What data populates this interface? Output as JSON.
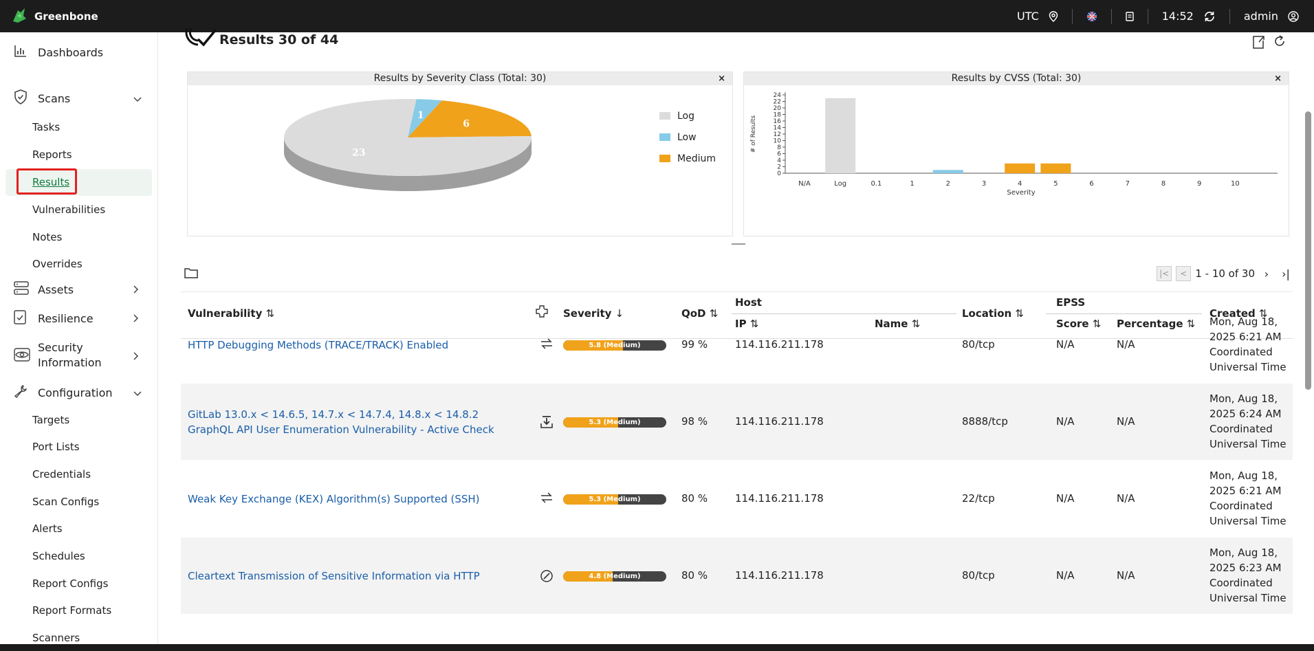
{
  "topbar": {
    "brand": "Greenbone",
    "timezone": "UTC",
    "time": "14:52",
    "user": "admin"
  },
  "sidebar": {
    "dashboards": "Dashboards",
    "scans": "Scans",
    "scan_items": [
      "Tasks",
      "Reports",
      "Results",
      "Vulnerabilities",
      "Notes",
      "Overrides"
    ],
    "assets": "Assets",
    "resilience": "Resilience",
    "security_information_1": "Security",
    "security_information_2": "Information",
    "configuration": "Configuration",
    "config_items": [
      "Targets",
      "Port Lists",
      "Credentials",
      "Scan Configs",
      "Alerts",
      "Schedules",
      "Report Configs",
      "Report Formats",
      "Scanners"
    ]
  },
  "page": {
    "title": "Results 30 of 44"
  },
  "panels": {
    "severity_class_title": "Results by Severity Class (Total: 30)",
    "cvss_title": "Results by CVSS (Total: 30)",
    "close": "×"
  },
  "chart_data": [
    {
      "type": "pie",
      "title": "Results by Severity Class (Total: 30)",
      "labels": [
        "Log",
        "Low",
        "Medium"
      ],
      "values": [
        23,
        1,
        6
      ],
      "colors": [
        "#dcdcdc",
        "#87cbe8",
        "#f0a21b"
      ],
      "legend": "right"
    },
    {
      "type": "bar",
      "title": "Results by CVSS (Total: 30)",
      "categories": [
        "N/A",
        "Log",
        "0.1",
        "1",
        "2",
        "3",
        "4",
        "5",
        "6",
        "7",
        "8",
        "9",
        "10"
      ],
      "values": [
        0,
        23,
        0,
        0,
        1,
        0,
        3,
        3,
        0,
        0,
        0,
        0,
        0
      ],
      "colors": [
        "#dcdcdc",
        "#dcdcdc",
        "#87cbe8",
        "#87cbe8",
        "#87cbe8",
        "#87cbe8",
        "#f0a21b",
        "#f0a21b",
        "#f0a21b",
        "#e53935",
        "#e53935",
        "#e53935",
        "#e53935"
      ],
      "xlabel": "Severity",
      "ylabel": "# of Results",
      "yticks": [
        0,
        2,
        4,
        6,
        8,
        10,
        12,
        14,
        16,
        18,
        20,
        22,
        24
      ],
      "ylim": [
        0,
        24
      ]
    }
  ],
  "pager": {
    "range": "1 - 10 of 30"
  },
  "table": {
    "headers": {
      "vulnerability": "Vulnerability",
      "severity": "Severity",
      "qod": "QoD",
      "host": "Host",
      "ip": "IP",
      "name": "Name",
      "location": "Location",
      "epss": "EPSS",
      "score": "Score",
      "percentage": "Percentage",
      "created": "Created"
    },
    "rows": [
      {
        "vuln": "HTTP Debugging Methods (TRACE/TRACK) Enabled",
        "severity_label": "5.8 (Medium)",
        "severity_value": 5.8,
        "qod": "99 %",
        "ip": "114.116.211.178",
        "name": "",
        "location": "80/tcp",
        "score": "N/A",
        "percentage": "N/A",
        "created": "Mon, Aug 18, 2025 6:21 AM Coordinated Universal Time"
      },
      {
        "vuln": "GitLab 13.0.x < 14.6.5, 14.7.x < 14.7.4, 14.8.x < 14.8.2 GraphQL API User Enumeration Vulnerability - Active Check",
        "severity_label": "5.3 (Medium)",
        "severity_value": 5.3,
        "qod": "98 %",
        "ip": "114.116.211.178",
        "name": "",
        "location": "8888/tcp",
        "score": "N/A",
        "percentage": "N/A",
        "created": "Mon, Aug 18, 2025 6:24 AM Coordinated Universal Time"
      },
      {
        "vuln": "Weak Key Exchange (KEX) Algorithm(s) Supported (SSH)",
        "severity_label": "5.3 (Medium)",
        "severity_value": 5.3,
        "qod": "80 %",
        "ip": "114.116.211.178",
        "name": "",
        "location": "22/tcp",
        "score": "N/A",
        "percentage": "N/A",
        "created": "Mon, Aug 18, 2025 6:21 AM Coordinated Universal Time"
      },
      {
        "vuln": "Cleartext Transmission of Sensitive Information via HTTP",
        "severity_label": "4.8 (Medium)",
        "severity_value": 4.8,
        "qod": "80 %",
        "ip": "114.116.211.178",
        "name": "",
        "location": "80/tcp",
        "score": "N/A",
        "percentage": "N/A",
        "created": "Mon, Aug 18, 2025 6:23 AM Coordinated Universal Time"
      }
    ]
  }
}
